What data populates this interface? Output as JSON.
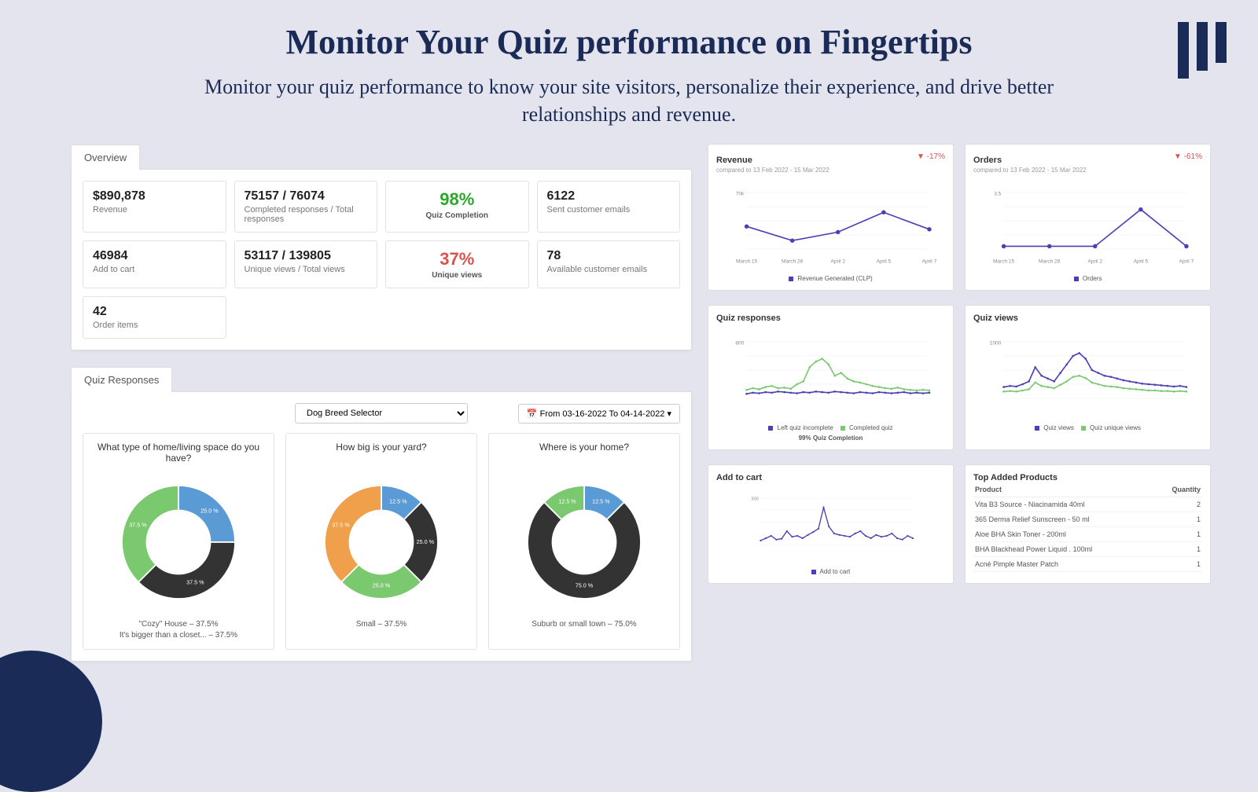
{
  "header": {
    "title": "Monitor Your Quiz performance on Fingertips",
    "subtitle": "Monitor your quiz performance to know your site visitors, personalize their experience, and drive better relationships and revenue."
  },
  "colors": {
    "brand_dark": "#1a2b57",
    "bg": "#e4e4ee",
    "green": "#2aa82a",
    "red": "#d9534f",
    "series_green": "#7bc96f",
    "series_blue": "#5b9bd5",
    "series_dark": "#333333",
    "series_orange": "#f0a04b",
    "series_purple": "#4a3fb5"
  },
  "overview": {
    "tab": "Overview",
    "cards": {
      "revenue": {
        "value": "$890,878",
        "label": "Revenue"
      },
      "responses": {
        "value": "75157 / 76074",
        "label": "Completed responses / Total responses"
      },
      "completion": {
        "value": "98%",
        "label": "Quiz Completion",
        "color": "green"
      },
      "emails_sent": {
        "value": "6122",
        "label": "Sent customer emails"
      },
      "add_to_cart": {
        "value": "46984",
        "label": "Add to cart"
      },
      "views": {
        "value": "53117 / 139805",
        "label": "Unique views / Total views"
      },
      "unique_views": {
        "value": "37%",
        "label": "Unique views",
        "color": "red"
      },
      "emails_avail": {
        "value": "78",
        "label": "Available customer emails"
      },
      "order_items": {
        "value": "42",
        "label": "Order items"
      }
    }
  },
  "quiz_responses": {
    "tab": "Quiz Responses",
    "selector": "Dog Breed Selector",
    "date_range": "From 03-16-2022 To 04-14-2022",
    "donuts": [
      {
        "title": "What type of home/living space do you have?",
        "slices": [
          {
            "label": "25.0 %",
            "value": 25,
            "color": "#5b9bd5"
          },
          {
            "label": "37.5 %",
            "value": 37.5,
            "color": "#333333"
          },
          {
            "label": "37.5 %",
            "value": 37.5,
            "color": "#7bc96f"
          }
        ],
        "legend": [
          "\"Cozy\" House – 37.5%",
          "It's bigger than a closet... – 37.5%"
        ]
      },
      {
        "title": "How big is your yard?",
        "slices": [
          {
            "label": "12.5 %",
            "value": 12.5,
            "color": "#5b9bd5"
          },
          {
            "label": "25.0 %",
            "value": 25,
            "color": "#333333"
          },
          {
            "label": "25.0 %",
            "value": 25,
            "color": "#7bc96f"
          },
          {
            "label": "37.5 %",
            "value": 37.5,
            "color": "#f0a04b"
          }
        ],
        "legend": [
          "Small – 37.5%"
        ]
      },
      {
        "title": "Where is your home?",
        "slices": [
          {
            "label": "12.5 %",
            "value": 12.5,
            "color": "#5b9bd5"
          },
          {
            "label": "75.0 %",
            "value": 75,
            "color": "#333333"
          },
          {
            "label": "12.5 %",
            "value": 12.5,
            "color": "#7bc96f"
          }
        ],
        "legend": [
          "Suburb or small town – 75.0%"
        ]
      }
    ]
  },
  "mini_charts": {
    "compare_sub": "compared to 13 Feb 2022 - 15 Mar 2022",
    "revenue": {
      "title": "Revenue",
      "delta": "▼ -17%",
      "x_labels": [
        "March 15",
        "March 28",
        "April 2",
        "April 5",
        "April 7"
      ],
      "ytick": "70k",
      "points": [
        40,
        15,
        30,
        65,
        35
      ],
      "legend": "Revenue Generated (CLP)",
      "color": "#4a3fb5"
    },
    "orders": {
      "title": "Orders",
      "delta": "▼ -61%",
      "x_labels": [
        "March 15",
        "March 28",
        "April 2",
        "April 5",
        "April 7"
      ],
      "ytick": "3.5",
      "points": [
        5,
        5,
        5,
        70,
        5
      ],
      "legend": "Orders",
      "color": "#4a3fb5"
    },
    "quiz_responses": {
      "title": "Quiz responses",
      "ytick": "800",
      "series": [
        {
          "color": "#4a3fb5",
          "legend": "Left quiz incomplete",
          "points": [
            8,
            10,
            9,
            11,
            10,
            12,
            11,
            10,
            9,
            11,
            10,
            12,
            11,
            10,
            12,
            11,
            10,
            9,
            11,
            10,
            9,
            11,
            10,
            9,
            10,
            11,
            9,
            10,
            9,
            10
          ]
        },
        {
          "color": "#7bc96f",
          "legend": "Completed quiz",
          "points": [
            15,
            18,
            16,
            20,
            22,
            18,
            19,
            17,
            25,
            30,
            55,
            65,
            70,
            60,
            40,
            45,
            35,
            30,
            28,
            25,
            22,
            20,
            18,
            17,
            19,
            16,
            15,
            14,
            15,
            14
          ]
        }
      ],
      "footer": "99% Quiz Completion"
    },
    "quiz_views": {
      "title": "Quiz views",
      "ytick": "1000",
      "series": [
        {
          "color": "#4a3fb5",
          "legend": "Quiz views",
          "points": [
            20,
            22,
            21,
            25,
            30,
            55,
            40,
            35,
            30,
            45,
            60,
            75,
            80,
            70,
            50,
            45,
            40,
            38,
            35,
            32,
            30,
            28,
            26,
            25,
            24,
            23,
            22,
            21,
            22,
            20
          ]
        },
        {
          "color": "#7bc96f",
          "legend": "Quiz unique views",
          "points": [
            12,
            13,
            12,
            14,
            16,
            28,
            22,
            20,
            18,
            24,
            30,
            38,
            40,
            36,
            28,
            25,
            22,
            21,
            20,
            18,
            17,
            16,
            15,
            14,
            14,
            13,
            13,
            12,
            13,
            12
          ]
        }
      ]
    },
    "add_to_cart": {
      "title": "Add to cart",
      "ytick": "500",
      "color": "#4a3fb5",
      "legend": "Add to cart",
      "points": [
        10,
        15,
        20,
        12,
        14,
        30,
        18,
        20,
        15,
        22,
        28,
        35,
        80,
        40,
        25,
        22,
        20,
        18,
        25,
        30,
        20,
        15,
        22,
        18,
        20,
        25,
        15,
        12,
        20,
        15
      ]
    },
    "top_products": {
      "title": "Top Added Products",
      "columns": [
        "Product",
        "Quantity"
      ],
      "rows": [
        [
          "Vita B3 Source - Niacinamida 40ml",
          "2"
        ],
        [
          "365 Derma Relief Sunscreen - 50 ml",
          "1"
        ],
        [
          "Aloe BHA Skin Toner - 200ml",
          "1"
        ],
        [
          "BHA Blackhead Power Liquid . 100ml",
          "1"
        ],
        [
          "Acné Pimple Master Patch",
          "1"
        ]
      ]
    }
  }
}
